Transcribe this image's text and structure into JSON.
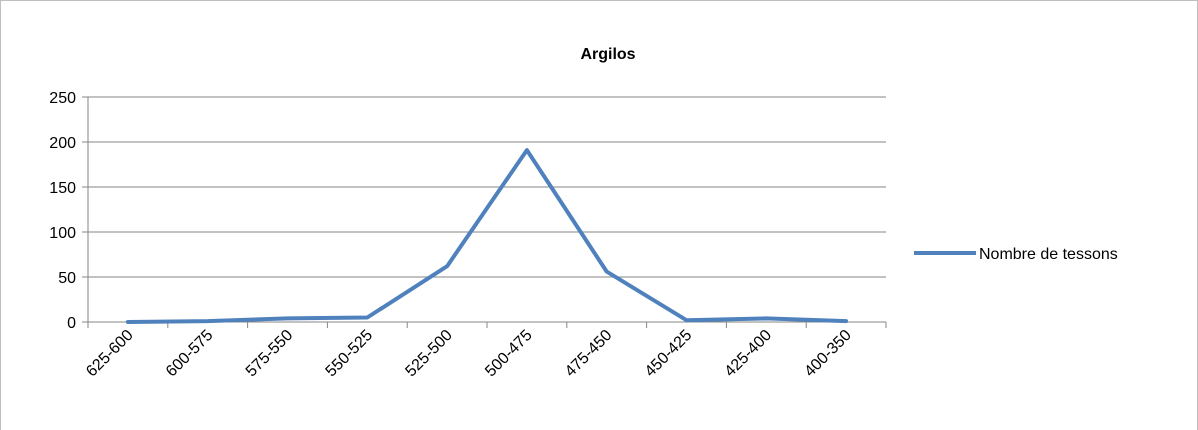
{
  "chart_data": {
    "type": "line",
    "title": "Argilos",
    "xlabel": "",
    "ylabel": "",
    "categories": [
      "625-600",
      "600-575",
      "575-550",
      "550-525",
      "525-500",
      "500-475",
      "475-450",
      "450-425",
      "425-400",
      "400-350"
    ],
    "series": [
      {
        "name": "Nombre de tessons",
        "values": [
          0,
          1,
          4,
          5,
          62,
          191,
          56,
          2,
          4,
          1
        ],
        "color": "#4f81bd"
      }
    ],
    "ylim": [
      0,
      250
    ],
    "yticks": [
      0,
      50,
      100,
      150,
      200,
      250
    ],
    "grid": true,
    "legend_position": "right"
  }
}
